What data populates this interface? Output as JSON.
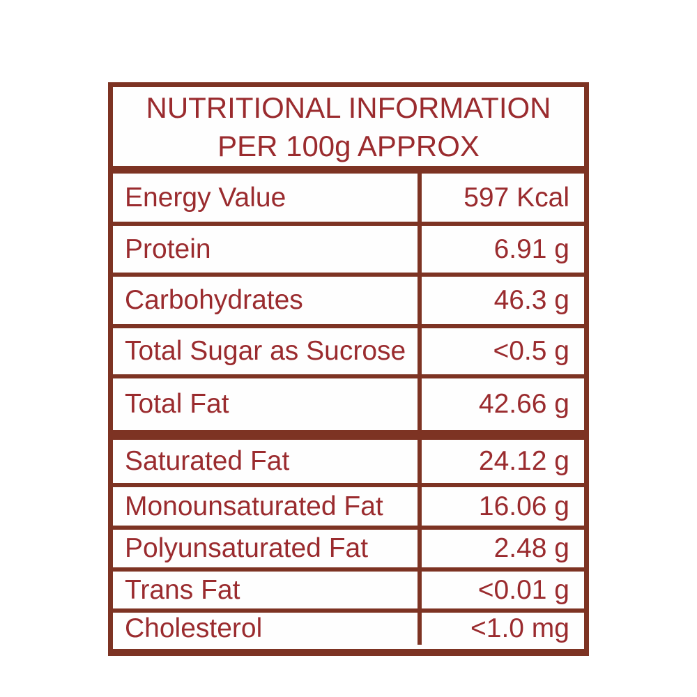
{
  "header": {
    "line1": "NUTRITIONAL INFORMATION",
    "line2": "PER 100g APPROX"
  },
  "sections": [
    {
      "rows": [
        {
          "label": "Energy Value",
          "value": "597 Kcal"
        },
        {
          "label": "Protein",
          "value": "6.91 g"
        },
        {
          "label": "Carbohydrates",
          "value": "46.3 g"
        },
        {
          "label": "Total Sugar as Sucrose",
          "value": "<0.5 g"
        },
        {
          "label": "Total Fat",
          "value": "42.66 g"
        }
      ]
    },
    {
      "rows": [
        {
          "label": "Saturated Fat",
          "value": "24.12 g"
        },
        {
          "label": "Monounsaturated Fat",
          "value": "16.06 g"
        },
        {
          "label": "Polyunsaturated Fat",
          "value": "2.48 g"
        },
        {
          "label": "Trans Fat",
          "value": "<0.01 g"
        },
        {
          "label": "Cholesterol",
          "value": "<1.0 mg"
        }
      ]
    }
  ],
  "colors": {
    "border": "#7d3323",
    "text": "#9a2b2e",
    "background": "#ffffff"
  }
}
